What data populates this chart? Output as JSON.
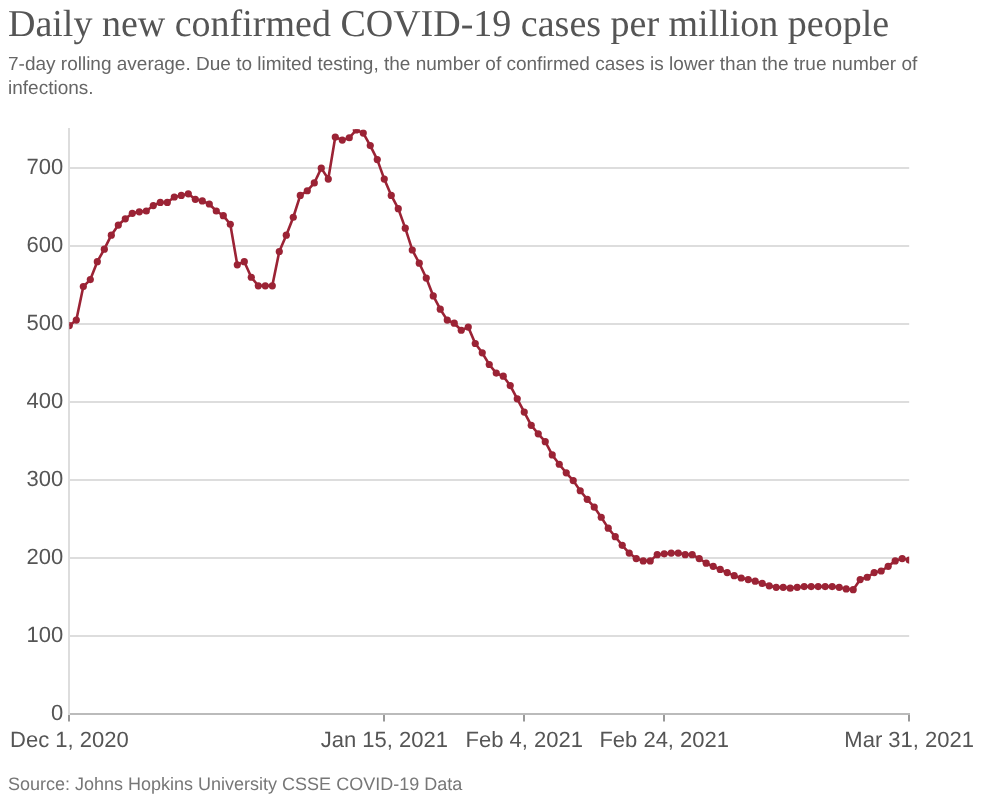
{
  "chart_data": {
    "type": "line",
    "title": "Daily new confirmed COVID-19 cases per million people",
    "subtitle": "7-day rolling average. Due to limited testing, the number of confirmed cases is lower than the true number of infections.",
    "annotations": [
      "Source: Johns Hopkins University CSSE COVID-19 Data"
    ],
    "x": [
      "2020-12-01",
      "2020-12-02",
      "2020-12-03",
      "2020-12-04",
      "2020-12-05",
      "2020-12-06",
      "2020-12-07",
      "2020-12-08",
      "2020-12-09",
      "2020-12-10",
      "2020-12-11",
      "2020-12-12",
      "2020-12-13",
      "2020-12-14",
      "2020-12-15",
      "2020-12-16",
      "2020-12-17",
      "2020-12-18",
      "2020-12-19",
      "2020-12-20",
      "2020-12-21",
      "2020-12-22",
      "2020-12-23",
      "2020-12-24",
      "2020-12-25",
      "2020-12-26",
      "2020-12-27",
      "2020-12-28",
      "2020-12-29",
      "2020-12-30",
      "2020-12-31",
      "2021-01-01",
      "2021-01-02",
      "2021-01-03",
      "2021-01-04",
      "2021-01-05",
      "2021-01-06",
      "2021-01-07",
      "2021-01-08",
      "2021-01-09",
      "2021-01-10",
      "2021-01-11",
      "2021-01-12",
      "2021-01-13",
      "2021-01-14",
      "2021-01-15",
      "2021-01-16",
      "2021-01-17",
      "2021-01-18",
      "2021-01-19",
      "2021-01-20",
      "2021-01-21",
      "2021-01-22",
      "2021-01-23",
      "2021-01-24",
      "2021-01-25",
      "2021-01-26",
      "2021-01-27",
      "2021-01-28",
      "2021-01-29",
      "2021-01-30",
      "2021-01-31",
      "2021-02-01",
      "2021-02-02",
      "2021-02-03",
      "2021-02-04",
      "2021-02-05",
      "2021-02-06",
      "2021-02-07",
      "2021-02-08",
      "2021-02-09",
      "2021-02-10",
      "2021-02-11",
      "2021-02-12",
      "2021-02-13",
      "2021-02-14",
      "2021-02-15",
      "2021-02-16",
      "2021-02-17",
      "2021-02-18",
      "2021-02-19",
      "2021-02-20",
      "2021-02-21",
      "2021-02-22",
      "2021-02-23",
      "2021-02-24",
      "2021-02-25",
      "2021-02-26",
      "2021-02-27",
      "2021-02-28",
      "2021-03-01",
      "2021-03-02",
      "2021-03-03",
      "2021-03-04",
      "2021-03-05",
      "2021-03-06",
      "2021-03-07",
      "2021-03-08",
      "2021-03-09",
      "2021-03-10",
      "2021-03-11",
      "2021-03-12",
      "2021-03-13",
      "2021-03-14",
      "2021-03-15",
      "2021-03-16",
      "2021-03-17",
      "2021-03-18",
      "2021-03-19",
      "2021-03-20",
      "2021-03-21",
      "2021-03-22",
      "2021-03-23",
      "2021-03-24",
      "2021-03-25",
      "2021-03-26",
      "2021-03-27",
      "2021-03-28",
      "2021-03-29",
      "2021-03-30",
      "2021-03-31"
    ],
    "series": [
      {
        "color": "#9b2335",
        "values": [
          498,
          505,
          548,
          557,
          580,
          596,
          614,
          627,
          635,
          642,
          644,
          645,
          652,
          656,
          656,
          663,
          665,
          667,
          660,
          658,
          654,
          645,
          639,
          628,
          576,
          580,
          560,
          549,
          549,
          549,
          593,
          614,
          637,
          665,
          671,
          681,
          700,
          686,
          740,
          736,
          739,
          749,
          745,
          729,
          711,
          686,
          665,
          648,
          623,
          595,
          578,
          559,
          536,
          519,
          505,
          501,
          492,
          496,
          475,
          463,
          448,
          437,
          433,
          421,
          404,
          387,
          370,
          359,
          349,
          332,
          320,
          309,
          299,
          286,
          275,
          265,
          252,
          238,
          227,
          216,
          206,
          199,
          196,
          196,
          204,
          205,
          206,
          206,
          204,
          204,
          199,
          193,
          189,
          185,
          181,
          177,
          174,
          172,
          170,
          167,
          164,
          162,
          162,
          161,
          162,
          163,
          163,
          163,
          163,
          163,
          162,
          160,
          159,
          172,
          175,
          181,
          183,
          189,
          196,
          199,
          197
        ]
      }
    ],
    "xlim": [
      "2020-12-01",
      "2021-03-31"
    ],
    "xticks": [
      {
        "value": "2020-12-01",
        "label": "Dec 1, 2020"
      },
      {
        "value": "2021-01-15",
        "label": "Jan 15, 2021"
      },
      {
        "value": "2021-02-04",
        "label": "Feb 4, 2021"
      },
      {
        "value": "2021-02-24",
        "label": "Feb 24, 2021"
      },
      {
        "value": "2021-03-31",
        "label": "Mar 31, 2021"
      }
    ],
    "ylim": [
      0,
      750
    ],
    "yticks": [
      0,
      100,
      200,
      300,
      400,
      500,
      600,
      700
    ],
    "grid": "y",
    "legend": false,
    "marker": "circle",
    "line_style": "solid"
  }
}
